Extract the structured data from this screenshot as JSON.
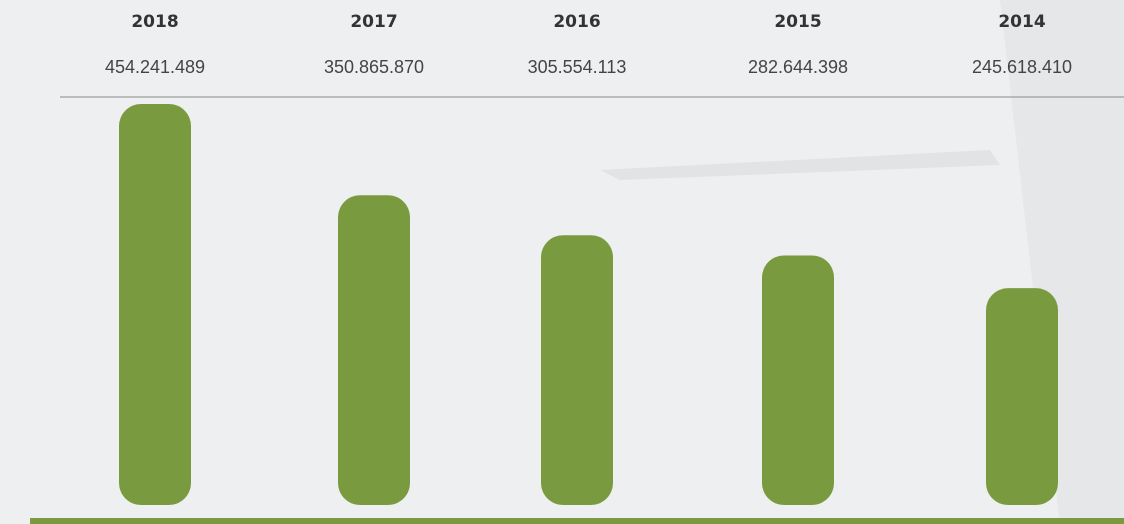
{
  "chart_data": {
    "type": "bar",
    "categories": [
      "2018",
      "2017",
      "2016",
      "2015",
      "2014"
    ],
    "values": [
      454241489,
      350865870,
      305554113,
      282644398,
      245618410
    ],
    "value_labels": [
      "454.241.489",
      "350.865.870",
      "305.554.113",
      "282.644.398",
      "245.618.410"
    ],
    "color": "#7a9a3f"
  }
}
